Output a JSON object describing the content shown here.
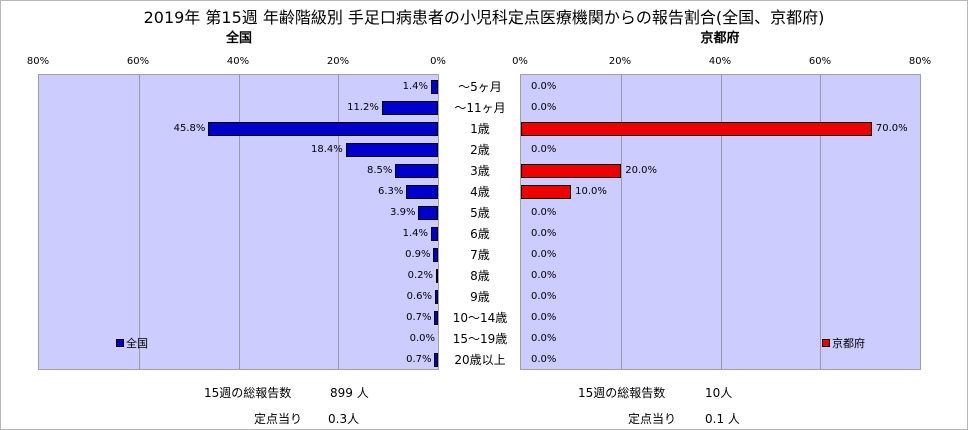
{
  "title": "2019年 第15週 年齢階級別 手足口病患者の小児科定点医療機関からの報告割合(全国、京都府)",
  "chart_data": {
    "type": "bar",
    "orientation": "horizontal",
    "categories": [
      "～5ヶ月",
      "～11ヶ月",
      "1歳",
      "2歳",
      "3歳",
      "4歳",
      "5歳",
      "6歳",
      "7歳",
      "8歳",
      "9歳",
      "10～14歳",
      "15～19歳",
      "20歳以上"
    ],
    "panels": [
      {
        "key": "left",
        "title": "全国",
        "legend": "全国",
        "color": "#0000cc",
        "xlim": [
          0,
          80
        ],
        "ticks": [
          "80%",
          "60%",
          "40%",
          "20%",
          "0%"
        ],
        "direction": "reversed",
        "values": [
          1.4,
          11.2,
          45.8,
          18.4,
          8.5,
          6.3,
          3.9,
          1.4,
          0.9,
          0.2,
          0.6,
          0.7,
          0.0,
          0.7
        ],
        "labels": [
          "1.4%",
          "11.2%",
          "45.8%",
          "18.4%",
          "8.5%",
          "6.3%",
          "3.9%",
          "1.4%",
          "0.9%",
          "0.2%",
          "0.6%",
          "0.7%",
          "0.0%",
          "0.7%"
        ]
      },
      {
        "key": "right",
        "title": "京都府",
        "legend": "京都府",
        "color": "#ee0000",
        "xlim": [
          0,
          80
        ],
        "ticks": [
          "0%",
          "20%",
          "40%",
          "60%",
          "80%"
        ],
        "direction": "normal",
        "values": [
          0.0,
          0.0,
          70.0,
          0.0,
          20.0,
          10.0,
          0.0,
          0.0,
          0.0,
          0.0,
          0.0,
          0.0,
          0.0,
          0.0
        ],
        "labels": [
          "0.0%",
          "0.0%",
          "70.0%",
          "0.0%",
          "20.0%",
          "10.0%",
          "0.0%",
          "0.0%",
          "0.0%",
          "0.0%",
          "0.0%",
          "0.0%",
          "0.0%",
          "0.0%"
        ]
      }
    ]
  },
  "footer": {
    "left": {
      "total_label": "15週の総報告数",
      "total_value": "899 人",
      "per_label": "定点当り",
      "per_value": "0.3人"
    },
    "right": {
      "total_label": "15週の総報告数",
      "total_value": "10人",
      "per_label": "定点当り",
      "per_value": "0.1 人"
    }
  }
}
